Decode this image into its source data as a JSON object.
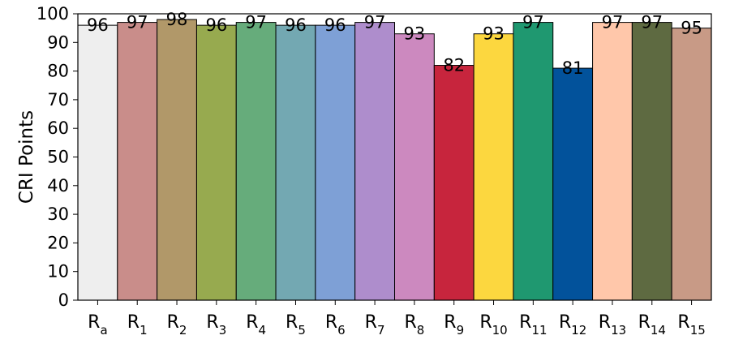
{
  "chart_data": {
    "type": "bar",
    "ylabel": "CRI Points",
    "xlabel": "",
    "ylim": [
      0,
      100
    ],
    "yticks": [
      0,
      10,
      20,
      30,
      40,
      50,
      60,
      70,
      80,
      90,
      100
    ],
    "grid": false,
    "categories": [
      {
        "base": "R",
        "sub": "a"
      },
      {
        "base": "R",
        "sub": "1"
      },
      {
        "base": "R",
        "sub": "2"
      },
      {
        "base": "R",
        "sub": "3"
      },
      {
        "base": "R",
        "sub": "4"
      },
      {
        "base": "R",
        "sub": "5"
      },
      {
        "base": "R",
        "sub": "6"
      },
      {
        "base": "R",
        "sub": "7"
      },
      {
        "base": "R",
        "sub": "8"
      },
      {
        "base": "R",
        "sub": "9"
      },
      {
        "base": "R",
        "sub": "10"
      },
      {
        "base": "R",
        "sub": "11"
      },
      {
        "base": "R",
        "sub": "12"
      },
      {
        "base": "R",
        "sub": "13"
      },
      {
        "base": "R",
        "sub": "14"
      },
      {
        "base": "R",
        "sub": "15"
      }
    ],
    "values": [
      96,
      97,
      98,
      96,
      97,
      96,
      96,
      97,
      93,
      82,
      93,
      97,
      81,
      97,
      97,
      95
    ],
    "data_labels": [
      "96",
      "97",
      "98",
      "96",
      "97",
      "96",
      "96",
      "97",
      "93",
      "82",
      "93",
      "97",
      "81",
      "97",
      "97",
      "95"
    ],
    "colors": [
      "#eeeeee",
      "#c98d8a",
      "#b19869",
      "#97aa4f",
      "#66ac7b",
      "#73a8b2",
      "#7ea0d6",
      "#ae8dcc",
      "#cc89bf",
      "#c7253d",
      "#fcd73f",
      "#1f9870",
      "#02529b",
      "#ffc7aa",
      "#5e6a41",
      "#c89a86"
    ]
  }
}
